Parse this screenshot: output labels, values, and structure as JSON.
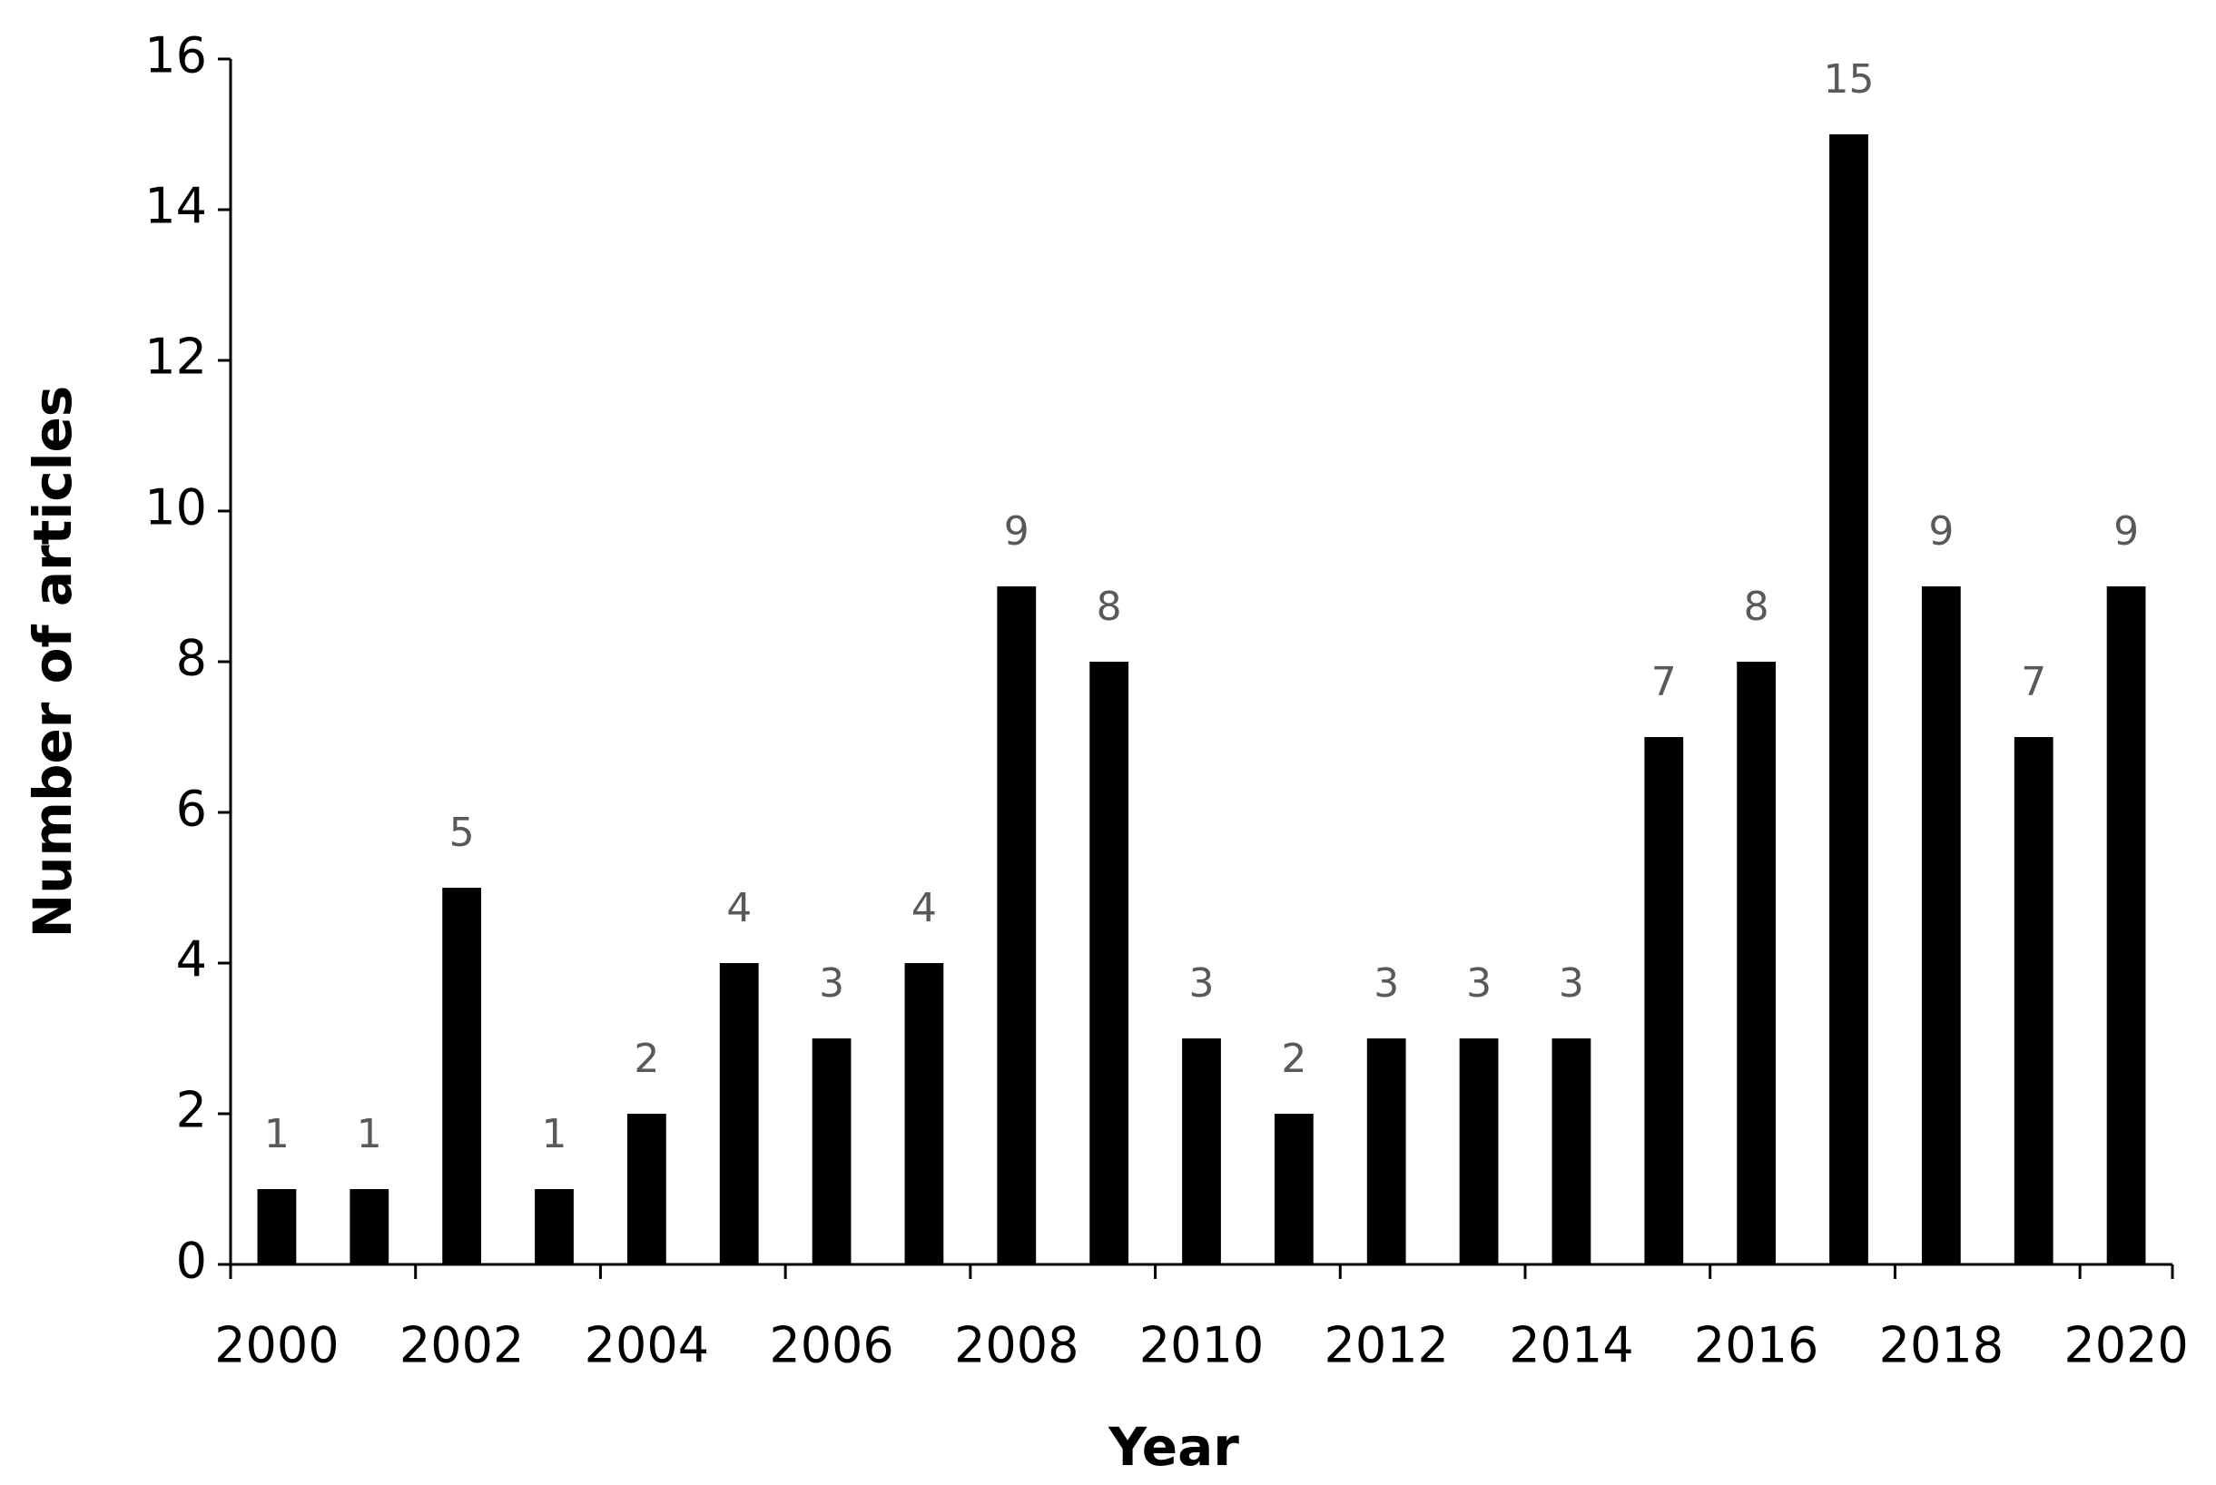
{
  "chart_data": {
    "type": "bar",
    "x_label": "Year",
    "y_label": "Number of articles",
    "categories": [
      "2000",
      null,
      "2002",
      null,
      "2004",
      null,
      "2006",
      null,
      "2008",
      null,
      "2010",
      null,
      "2012",
      null,
      "2014",
      null,
      "2016",
      null,
      "2018",
      null,
      "2020"
    ],
    "values": [
      1,
      1,
      5,
      1,
      2,
      4,
      3,
      4,
      9,
      8,
      3,
      2,
      3,
      3,
      3,
      7,
      8,
      15,
      9,
      7,
      9
    ],
    "color": "#000000",
    "ylim": [
      0,
      16
    ],
    "yticks": [
      0,
      2,
      4,
      6,
      8,
      10,
      12,
      14,
      16
    ],
    "grid": false
  }
}
